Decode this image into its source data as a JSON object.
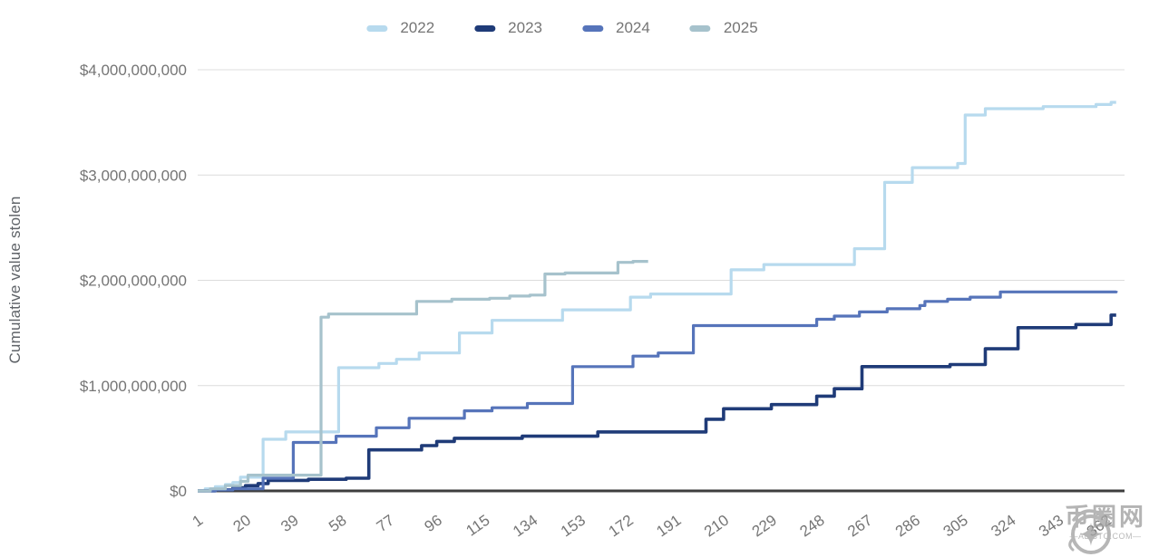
{
  "chart_data": {
    "type": "line",
    "line_style": "step-after",
    "title": "",
    "xlabel": "",
    "ylabel": "Cumulative value stolen",
    "x_unit": "day of year",
    "y_unit": "USD",
    "xlim": [
      1,
      366
    ],
    "ylim": [
      0,
      4000000000
    ],
    "grid": "horizontal",
    "legend_position": "top-center",
    "x_ticks": [
      1,
      20,
      39,
      58,
      77,
      96,
      115,
      134,
      153,
      172,
      191,
      210,
      229,
      248,
      267,
      286,
      305,
      324,
      343,
      362
    ],
    "y_ticks": [
      {
        "value_billions": 4,
        "label": "$4,000,000,000"
      },
      {
        "value_billions": 3,
        "label": "$3,000,000,000"
      },
      {
        "value_billions": 2,
        "label": "$2,000,000,000"
      },
      {
        "value_billions": 1,
        "label": "$1,000,000,000"
      },
      {
        "value_billions": 0,
        "label": "$0"
      }
    ],
    "series": [
      {
        "name": "2022",
        "color": "#B7DAEE",
        "stroke_width": 3.2,
        "end_value_billions": 3.69,
        "points_day_vs_billions": [
          [
            1,
            0
          ],
          [
            4,
            0.02
          ],
          [
            8,
            0.04
          ],
          [
            12,
            0.06
          ],
          [
            15,
            0.08
          ],
          [
            18,
            0.13
          ],
          [
            27,
            0.49
          ],
          [
            36,
            0.56
          ],
          [
            57,
            1.17
          ],
          [
            73,
            1.21
          ],
          [
            80,
            1.25
          ],
          [
            89,
            1.31
          ],
          [
            105,
            1.5
          ],
          [
            118,
            1.62
          ],
          [
            146,
            1.72
          ],
          [
            173,
            1.84
          ],
          [
            181,
            1.87
          ],
          [
            213,
            2.1
          ],
          [
            226,
            2.15
          ],
          [
            262,
            2.3
          ],
          [
            274,
            2.93
          ],
          [
            285,
            3.07
          ],
          [
            303,
            3.11
          ],
          [
            306,
            3.57
          ],
          [
            314,
            3.63
          ],
          [
            337,
            3.65
          ],
          [
            358,
            3.67
          ],
          [
            364,
            3.69
          ],
          [
            366,
            3.69
          ]
        ]
      },
      {
        "name": "2023",
        "color": "#1F3B78",
        "stroke_width": 3.6,
        "end_value_billions": 1.67,
        "points_day_vs_billions": [
          [
            1,
            0
          ],
          [
            8,
            0.01
          ],
          [
            15,
            0.03
          ],
          [
            20,
            0.05
          ],
          [
            25,
            0.07
          ],
          [
            29,
            0.1
          ],
          [
            45,
            0.11
          ],
          [
            60,
            0.12
          ],
          [
            69,
            0.39
          ],
          [
            90,
            0.43
          ],
          [
            96,
            0.47
          ],
          [
            103,
            0.5
          ],
          [
            130,
            0.52
          ],
          [
            160,
            0.56
          ],
          [
            203,
            0.68
          ],
          [
            210,
            0.78
          ],
          [
            229,
            0.82
          ],
          [
            247,
            0.9
          ],
          [
            254,
            0.97
          ],
          [
            265,
            1.18
          ],
          [
            300,
            1.2
          ],
          [
            314,
            1.35
          ],
          [
            327,
            1.55
          ],
          [
            350,
            1.58
          ],
          [
            364,
            1.67
          ],
          [
            366,
            1.67
          ]
        ]
      },
      {
        "name": "2024",
        "color": "#5674BA",
        "stroke_width": 3.2,
        "end_value_billions": 1.9,
        "points_day_vs_billions": [
          [
            1,
            0
          ],
          [
            8,
            0.01
          ],
          [
            15,
            0.02
          ],
          [
            27,
            0.12
          ],
          [
            39,
            0.46
          ],
          [
            56,
            0.52
          ],
          [
            72,
            0.6
          ],
          [
            85,
            0.69
          ],
          [
            107,
            0.76
          ],
          [
            118,
            0.79
          ],
          [
            132,
            0.83
          ],
          [
            150,
            1.18
          ],
          [
            174,
            1.28
          ],
          [
            184,
            1.31
          ],
          [
            198,
            1.57
          ],
          [
            247,
            1.63
          ],
          [
            254,
            1.66
          ],
          [
            264,
            1.7
          ],
          [
            275,
            1.73
          ],
          [
            288,
            1.76
          ],
          [
            290,
            1.8
          ],
          [
            299,
            1.82
          ],
          [
            308,
            1.84
          ],
          [
            320,
            1.89
          ],
          [
            366,
            1.9
          ]
        ]
      },
      {
        "name": "2025",
        "color": "#A6C2CC",
        "stroke_width": 3.2,
        "end_value_billions": 2.18,
        "points_day_vs_billions": [
          [
            1,
            0
          ],
          [
            6,
            0.02
          ],
          [
            12,
            0.05
          ],
          [
            18,
            0.09
          ],
          [
            21,
            0.15
          ],
          [
            50,
            1.65
          ],
          [
            53,
            1.68
          ],
          [
            88,
            1.8
          ],
          [
            102,
            1.82
          ],
          [
            117,
            1.83
          ],
          [
            125,
            1.85
          ],
          [
            133,
            1.86
          ],
          [
            139,
            2.06
          ],
          [
            147,
            2.07
          ],
          [
            168,
            2.17
          ],
          [
            174,
            2.18
          ],
          [
            180,
            2.18
          ]
        ]
      }
    ],
    "colors": {
      "gridline": "#dcdcdc",
      "baseline": "#3e3e3e",
      "tick_label": "#757575",
      "axis_title": "#5f6368",
      "watermark": "#a2a2a2"
    }
  },
  "watermark": {
    "site_name": "币圈网",
    "domain": "—ALIBTC.COM—"
  }
}
